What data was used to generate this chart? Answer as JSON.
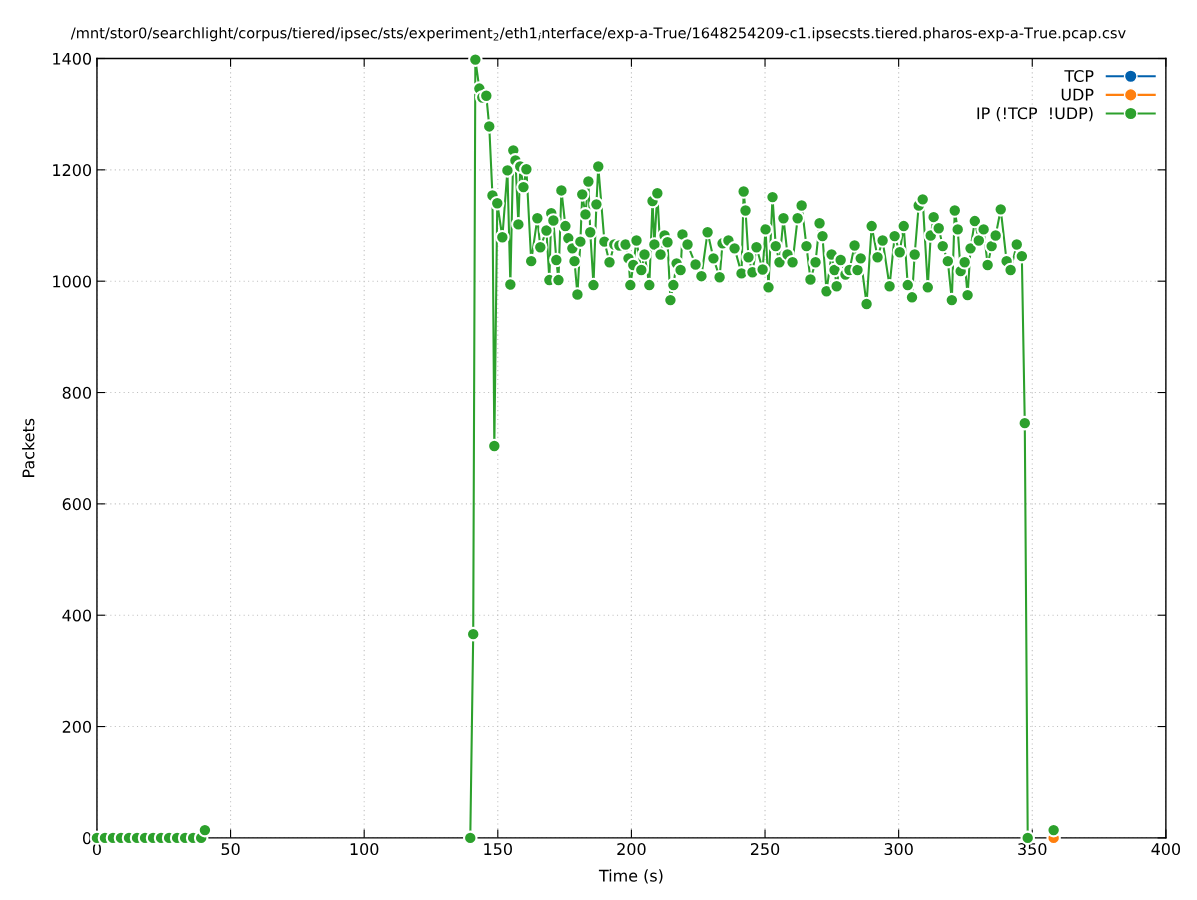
{
  "chart_data": {
    "type": "line",
    "title": "/mnt/stor0/searchlight/corpus/tiered/ipsec/sts/experiment$_{2}$/eth1$_{i}$nterface/exp-a-True/1648254209-c1.ipsecsts.tiered.pharos-exp-a-True.pcap.csv",
    "xlabel": "Time (s)",
    "ylabel": "Packets",
    "xlim": [
      0,
      400
    ],
    "xticks": [
      0,
      50,
      100,
      150,
      200,
      250,
      300,
      350,
      400
    ],
    "ylim": [
      0,
      1400
    ],
    "yticks": [
      0,
      200,
      400,
      600,
      800,
      1000,
      1200,
      1400
    ],
    "grid": true,
    "legend": "top right",
    "marker": "circle",
    "line_style": "solid",
    "series": [
      {
        "name": "TCP",
        "color": "#0060ad"
      },
      {
        "name": "UDP",
        "color": "#ff7f0e",
        "x": [
          358
        ],
        "values": [
          0
        ]
      },
      {
        "name": "IP (!TCP  !UDP)",
        "color": "#2ca02c",
        "x": [
          0,
          3,
          6,
          9,
          12,
          15,
          18,
          21,
          24,
          27,
          30,
          33,
          36,
          39,
          40.4,
          90,
          139.7,
          140.8,
          141.6,
          143.1,
          144.2,
          145.7,
          146.8,
          148,
          148.7,
          149.8,
          151.7,
          153.6,
          154.7,
          155.8,
          156.6,
          157.7,
          158.4,
          159.6,
          160.7,
          162.5,
          164.8,
          165.9,
          168.2,
          169.3,
          170,
          170.8,
          171.9,
          172.7,
          173.8,
          175.3,
          176.4,
          177.9,
          178.7,
          179.8,
          180.9,
          181.6,
          182.8,
          183.9,
          184.6,
          185.8,
          186.9,
          187.6,
          189.9,
          191.8,
          193.6,
          195.5,
          197.8,
          198.9,
          199.6,
          200.7,
          201.9,
          203.7,
          204.9,
          206.7,
          207.9,
          208.6,
          209.7,
          210.9,
          212.4,
          213.5,
          214.6,
          215.7,
          216.9,
          218.4,
          219.1,
          221,
          224,
          226.2,
          228.5,
          230.7,
          233,
          234.1,
          236.3,
          238.6,
          241.2,
          242,
          242.7,
          243.8,
          245.3,
          246.8,
          249.1,
          250.2,
          251.3,
          252.8,
          254,
          255.4,
          256.9,
          258.4,
          260.3,
          262.2,
          263.7,
          265.5,
          267,
          268.9,
          270.4,
          271.5,
          273,
          274.9,
          276,
          276.8,
          278.3,
          280.1,
          281.6,
          283.5,
          284.6,
          285.8,
          288,
          289.9,
          292.1,
          294,
          296.6,
          298.5,
          300.4,
          301.9,
          303.4,
          305,
          306,
          307.5,
          309,
          310.9,
          312,
          313.1,
          315,
          316.5,
          318.4,
          319.9,
          321,
          322.1,
          323.2,
          324.7,
          325.8,
          326.9,
          328.5,
          330,
          331.8,
          333.3,
          334.8,
          336.3,
          338.2,
          340.4,
          341.9,
          344.2,
          346.1,
          347.2,
          348.3,
          353,
          358
        ],
        "values": [
          0,
          0,
          0,
          0,
          0,
          0,
          0,
          0,
          0,
          0,
          0,
          0,
          0,
          0,
          14,
          null,
          0,
          366,
          1398,
          1346,
          1330,
          1333,
          1278,
          1154,
          704,
          1140,
          1079,
          1199,
          994,
          1235,
          1217,
          1102,
          1206,
          1169,
          1201,
          1036,
          1113,
          1061,
          1091,
          1002,
          1122,
          1109,
          1038,
          1002,
          1163,
          1099,
          1077,
          1059,
          1036,
          976,
          1071,
          1156,
          1120,
          1179,
          1088,
          993,
          1138,
          1206,
          1071,
          1034,
          1066,
          1064,
          1066,
          1041,
          993,
          1029,
          1073,
          1020,
          1048,
          993,
          1144,
          1066,
          1158,
          1048,
          1082,
          1070,
          966,
          993,
          1032,
          1020,
          1084,
          1066,
          1030,
          1009,
          1088,
          1041,
          1007,
          1068,
          1073,
          1059,
          1014,
          1161,
          1127,
          1043,
          1016,
          1061,
          1021,
          1093,
          989,
          1151,
          1063,
          1034,
          1113,
          1048,
          1034,
          1113,
          1136,
          1063,
          1003,
          1034,
          1104,
          1081,
          982,
          1048,
          1020,
          991,
          1038,
          1012,
          1020,
          1064,
          1020,
          1041,
          959,
          1099,
          1043,
          1073,
          991,
          1081,
          1052,
          1099,
          993,
          971,
          1048,
          1136,
          1147,
          989,
          1082,
          1115,
          1095,
          1063,
          1036,
          966,
          1127,
          1093,
          1018,
          1034,
          975,
          1059,
          1108,
          1073,
          1093,
          1029,
          1063,
          1082,
          1129,
          1036,
          1020,
          1066,
          1045,
          745,
          0,
          null,
          14
        ]
      }
    ]
  }
}
